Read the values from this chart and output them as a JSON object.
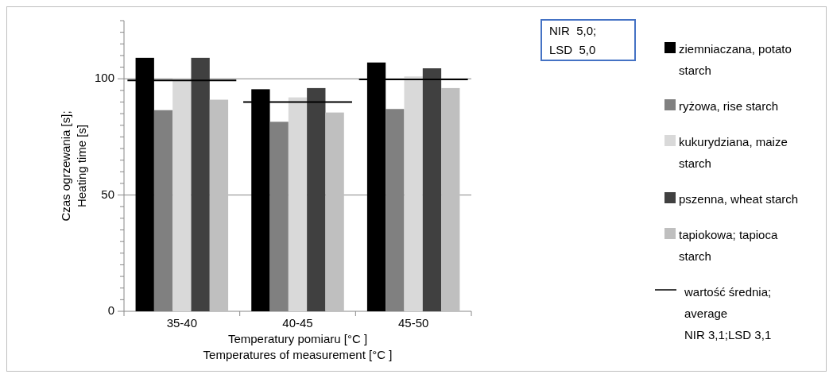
{
  "chart_data": {
    "type": "bar",
    "xlabel": "Temperatury pomiaru [°C ]\nTemperatures of measurement [°C ]",
    "ylabel": "Czas ogrzewania [s];\nHeating time [s]",
    "categories": [
      "35-40",
      "40-45",
      "45-50"
    ],
    "series": [
      {
        "name": "ziemniaczana, potato starch",
        "color": "#000000",
        "values": [
          109,
          95.5,
          107
        ]
      },
      {
        "name": "ryżowa, rise starch",
        "color": "#808080",
        "values": [
          86.5,
          81.5,
          87
        ]
      },
      {
        "name": "kukurydziana, maize starch",
        "color": "#d9d9d9",
        "values": [
          100,
          92,
          101
        ]
      },
      {
        "name": "pszenna, wheat starch",
        "color": "#404040",
        "values": [
          109,
          96,
          104.5
        ]
      },
      {
        "name": "tapiokowa; tapioca starch",
        "color": "#bfbfbf",
        "values": [
          91,
          85.5,
          96
        ]
      }
    ],
    "ref_lines": [
      {
        "axis": "y",
        "value": 99.3,
        "label": "wartość średnia; average\nNIR 3,1;LSD 3,1",
        "color": "#000000"
      },
      {
        "axis": "y",
        "value": 90,
        "color": "#000000"
      },
      {
        "axis": "y",
        "value": 99.7,
        "color": "#000000"
      }
    ],
    "ylim": [
      0,
      125
    ],
    "yticks": [
      0,
      {
        "value": 5,
        "label": null
      },
      {
        "value": 10,
        "label": null
      },
      {
        "value": 15,
        "label": null
      },
      {
        "value": 20,
        "label": null
      },
      {
        "value": 25,
        "label": null
      },
      {
        "value": 30,
        "label": null
      },
      {
        "value": 35,
        "label": null
      },
      {
        "value": 40,
        "label": null
      },
      {
        "value": 45,
        "label": null
      },
      50,
      {
        "value": 55,
        "label": null
      },
      {
        "value": 60,
        "label": null
      },
      {
        "value": 65,
        "label": null
      },
      {
        "value": 70,
        "label": null
      },
      {
        "value": 75,
        "label": null
      },
      {
        "value": 80,
        "label": null
      },
      {
        "value": 85,
        "label": null
      },
      {
        "value": 90,
        "label": null
      },
      {
        "value": 95,
        "label": null
      },
      100,
      {
        "value": 105,
        "label": null
      },
      {
        "value": 110,
        "label": null
      },
      {
        "value": 115,
        "label": null
      },
      {
        "value": 120,
        "label": null
      },
      {
        "value": 125,
        "label": null
      }
    ],
    "grid": "y",
    "legend": "right",
    "annotations": [
      "NIR  5,0;\nLSD  5,0"
    ]
  }
}
